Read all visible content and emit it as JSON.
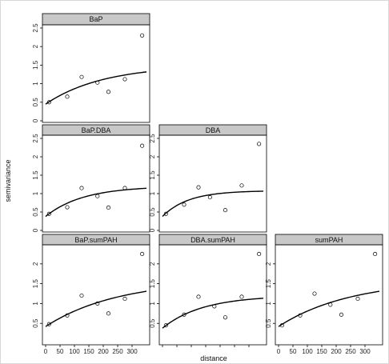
{
  "chart_data": {
    "type": "scatter",
    "layout": "trellis-lower-triangle",
    "xlabel": "distance",
    "ylabel": "semivariance",
    "xlim": [
      0,
      350
    ],
    "x_ticks": [
      0,
      50,
      100,
      150,
      200,
      250,
      300
    ],
    "panels": [
      {
        "title": "BaP",
        "ylim": [
          0,
          2.5
        ],
        "y_ticks": [
          0,
          0.5,
          1,
          1.5,
          2,
          2.5
        ],
        "points": {
          "x": [
            12,
            75,
            125,
            180,
            218,
            275,
            335
          ],
          "y": [
            0.5,
            0.65,
            1.18,
            1.03,
            0.78,
            1.12,
            2.3
          ]
        },
        "fit": {
          "model": "exponential",
          "nugget": 0.45,
          "sill": 1.5,
          "range": 200
        }
      },
      {
        "title": "BaP.DBA",
        "ylim": [
          0,
          2.5
        ],
        "y_ticks": [
          0,
          0.5,
          1,
          1.5,
          2,
          2.5
        ],
        "points": {
          "x": [
            12,
            75,
            125,
            180,
            218,
            275,
            335
          ],
          "y": [
            0.45,
            0.63,
            1.15,
            0.93,
            0.62,
            1.15,
            2.3
          ]
        },
        "fit": {
          "model": "exponential",
          "nugget": 0.38,
          "sill": 1.2,
          "range": 130
        }
      },
      {
        "title": "DBA",
        "ylim": [
          0,
          2.5
        ],
        "y_ticks": [
          0,
          0.5,
          1,
          1.5,
          2,
          2.5
        ],
        "points": {
          "x": [
            12,
            75,
            125,
            165,
            218,
            275,
            335
          ],
          "y": [
            0.45,
            0.7,
            1.17,
            0.9,
            0.55,
            1.22,
            2.35
          ]
        },
        "fit": {
          "model": "exponential",
          "nugget": 0.38,
          "sill": 1.08,
          "range": 90
        }
      },
      {
        "title": "BaP.sumPAH",
        "ylim": [
          0,
          2.4
        ],
        "y_ticks": [
          0.5,
          1,
          1.5,
          2
        ],
        "points": {
          "x": [
            12,
            75,
            125,
            180,
            218,
            275,
            335
          ],
          "y": [
            0.48,
            0.7,
            1.2,
            1.0,
            0.75,
            1.12,
            2.25
          ]
        },
        "fit": {
          "model": "exponential",
          "nugget": 0.42,
          "sill": 1.6,
          "range": 250
        }
      },
      {
        "title": "DBA.sumPAH",
        "ylim": [
          0,
          2.4
        ],
        "y_ticks": [
          0.5,
          1,
          1.5,
          2
        ],
        "points": {
          "x": [
            12,
            75,
            125,
            180,
            218,
            275,
            335
          ],
          "y": [
            0.45,
            0.72,
            1.17,
            0.93,
            0.65,
            1.17,
            2.25
          ]
        },
        "fit": {
          "model": "exponential",
          "nugget": 0.38,
          "sill": 1.2,
          "range": 140
        }
      },
      {
        "title": "sumPAH",
        "ylim": [
          0,
          2.4
        ],
        "y_ticks": [
          0.5,
          1,
          1.5,
          2
        ],
        "points": {
          "x": [
            12,
            75,
            125,
            180,
            218,
            275,
            335
          ],
          "y": [
            0.45,
            0.7,
            1.25,
            0.97,
            0.72,
            1.12,
            2.25
          ]
        },
        "fit": {
          "model": "exponential",
          "nugget": 0.42,
          "sill": 1.6,
          "range": 250
        }
      }
    ]
  },
  "colors": {
    "strip": "#c8c8c8",
    "points": "#000000",
    "line": "#000000",
    "frame": "#000000"
  }
}
